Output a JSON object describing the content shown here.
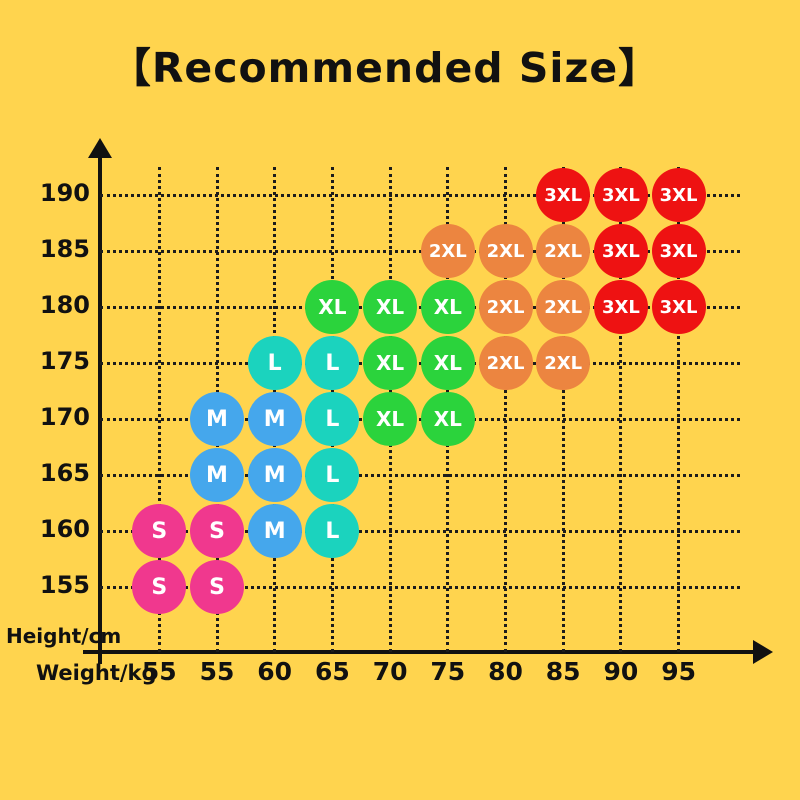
{
  "title": "【Recommended Size】",
  "colors": {
    "background": "#FFD44E",
    "grid": "#1c1c1c",
    "axis": "#111111",
    "dot_text": "#ffffff"
  },
  "chart_data": {
    "type": "scatter",
    "title": "【Recommended Size】",
    "xlabel": "Weight/kg",
    "ylabel": "Height/cm",
    "x_ticks": [
      "55",
      "55",
      "60",
      "65",
      "70",
      "75",
      "80",
      "85",
      "90",
      "95"
    ],
    "y_ticks": [
      190,
      185,
      180,
      175,
      170,
      165,
      160,
      155
    ],
    "grid": true,
    "legend": "none",
    "sizes": [
      {
        "label": "S",
        "color": "#F0388E"
      },
      {
        "label": "M",
        "color": "#45A7EC"
      },
      {
        "label": "L",
        "color": "#1BD3BE"
      },
      {
        "label": "XL",
        "color": "#2BD33C"
      },
      {
        "label": "2XL",
        "color": "#EC8540"
      },
      {
        "label": "3XL",
        "color": "#EE1212"
      }
    ],
    "points": [
      {
        "col": 0,
        "height": 155,
        "size": "S"
      },
      {
        "col": 1,
        "height": 155,
        "size": "S"
      },
      {
        "col": 0,
        "height": 160,
        "size": "S"
      },
      {
        "col": 1,
        "height": 160,
        "size": "S"
      },
      {
        "col": 2,
        "height": 160,
        "size": "M"
      },
      {
        "col": 3,
        "height": 160,
        "size": "L"
      },
      {
        "col": 1,
        "height": 165,
        "size": "M"
      },
      {
        "col": 2,
        "height": 165,
        "size": "M"
      },
      {
        "col": 3,
        "height": 165,
        "size": "L"
      },
      {
        "col": 1,
        "height": 170,
        "size": "M"
      },
      {
        "col": 2,
        "height": 170,
        "size": "M"
      },
      {
        "col": 3,
        "height": 170,
        "size": "L"
      },
      {
        "col": 4,
        "height": 170,
        "size": "XL"
      },
      {
        "col": 5,
        "height": 170,
        "size": "XL"
      },
      {
        "col": 2,
        "height": 175,
        "size": "L"
      },
      {
        "col": 3,
        "height": 175,
        "size": "L"
      },
      {
        "col": 4,
        "height": 175,
        "size": "XL"
      },
      {
        "col": 5,
        "height": 175,
        "size": "XL"
      },
      {
        "col": 6,
        "height": 175,
        "size": "2XL"
      },
      {
        "col": 7,
        "height": 175,
        "size": "2XL"
      },
      {
        "col": 3,
        "height": 180,
        "size": "XL"
      },
      {
        "col": 4,
        "height": 180,
        "size": "XL"
      },
      {
        "col": 5,
        "height": 180,
        "size": "XL"
      },
      {
        "col": 6,
        "height": 180,
        "size": "2XL"
      },
      {
        "col": 7,
        "height": 180,
        "size": "2XL"
      },
      {
        "col": 8,
        "height": 180,
        "size": "3XL"
      },
      {
        "col": 9,
        "height": 180,
        "size": "3XL"
      },
      {
        "col": 5,
        "height": 185,
        "size": "2XL"
      },
      {
        "col": 6,
        "height": 185,
        "size": "2XL"
      },
      {
        "col": 7,
        "height": 185,
        "size": "2XL"
      },
      {
        "col": 8,
        "height": 185,
        "size": "3XL"
      },
      {
        "col": 9,
        "height": 185,
        "size": "3XL"
      },
      {
        "col": 7,
        "height": 190,
        "size": "3XL"
      },
      {
        "col": 8,
        "height": 190,
        "size": "3XL"
      },
      {
        "col": 9,
        "height": 190,
        "size": "3XL"
      }
    ]
  }
}
